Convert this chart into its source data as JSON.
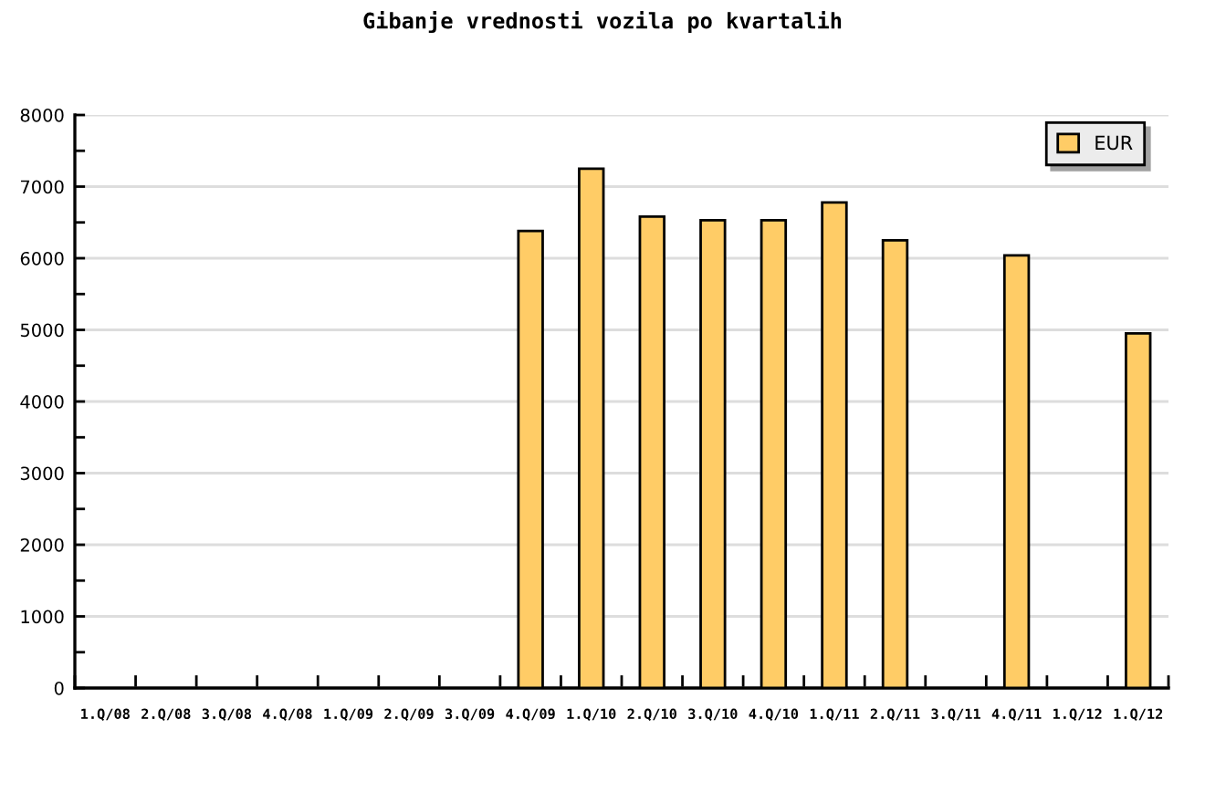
{
  "chart_data": {
    "type": "bar",
    "title": "Gibanje vrednosti vozila po kvartalih",
    "categories": [
      "1.Q/08",
      "2.Q/08",
      "3.Q/08",
      "4.Q/08",
      "1.Q/09",
      "2.Q/09",
      "3.Q/09",
      "4.Q/09",
      "1.Q/10",
      "2.Q/10",
      "3.Q/10",
      "4.Q/10",
      "1.Q/11",
      "2.Q/11",
      "3.Q/11",
      "4.Q/11",
      "1.Q/12",
      "1.Q/12"
    ],
    "series": [
      {
        "name": "EUR",
        "color": "#ffcc66",
        "values": [
          null,
          null,
          null,
          null,
          null,
          null,
          null,
          6380,
          7250,
          6580,
          6530,
          6530,
          6780,
          6250,
          null,
          6040,
          null,
          4950
        ]
      }
    ],
    "ylim": [
      0,
      8000
    ],
    "yticks": [
      0,
      {
        "value": 500,
        "label": null
      },
      1000,
      {
        "value": 1500,
        "label": null
      },
      2000,
      {
        "value": 2500,
        "label": null
      },
      3000,
      {
        "value": 3500,
        "label": null
      },
      4000,
      {
        "value": 4500,
        "label": null
      },
      5000,
      {
        "value": 5500,
        "label": null
      },
      6000,
      {
        "value": 6500,
        "label": null
      },
      7000,
      {
        "value": 7500,
        "label": null
      },
      8000
    ],
    "grid": "y",
    "legend": "top right"
  }
}
